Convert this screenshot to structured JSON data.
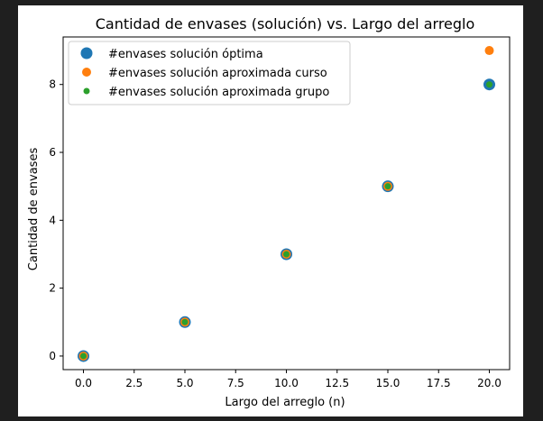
{
  "chart_data": {
    "type": "scatter",
    "title": "Cantidad de envases (solución) vs. Largo del arreglo",
    "xlabel": "Largo del arreglo (n)",
    "ylabel": "Cantidad de envases",
    "xlim": [
      -1.0,
      21.0
    ],
    "ylim": [
      -0.4,
      9.4
    ],
    "xticks": [
      0.0,
      2.5,
      5.0,
      7.5,
      10.0,
      12.5,
      15.0,
      17.5,
      20.0
    ],
    "xtick_labels": [
      "0.0",
      "2.5",
      "5.0",
      "7.5",
      "10.0",
      "12.5",
      "15.0",
      "17.5",
      "20.0"
    ],
    "yticks": [
      0,
      2,
      4,
      6,
      8
    ],
    "ytick_labels": [
      "0",
      "2",
      "4",
      "6",
      "8"
    ],
    "grid": false,
    "legend_position": "top-left",
    "series": [
      {
        "name": "#envases solución óptima",
        "color": "#1f77b4",
        "marker_size": "large",
        "x": [
          0,
          5,
          10,
          15,
          20
        ],
        "y": [
          0,
          1,
          3,
          5,
          8
        ]
      },
      {
        "name": "#envases solución aproximada curso",
        "color": "#ff7f0e",
        "marker_size": "medium",
        "x": [
          0,
          5,
          10,
          15,
          20
        ],
        "y": [
          0,
          1,
          3,
          5,
          9
        ]
      },
      {
        "name": "#envases solución aproximada grupo",
        "color": "#2ca02c",
        "marker_size": "small",
        "x": [
          0,
          5,
          10,
          15,
          20
        ],
        "y": [
          0,
          1,
          3,
          5,
          8
        ]
      }
    ]
  }
}
